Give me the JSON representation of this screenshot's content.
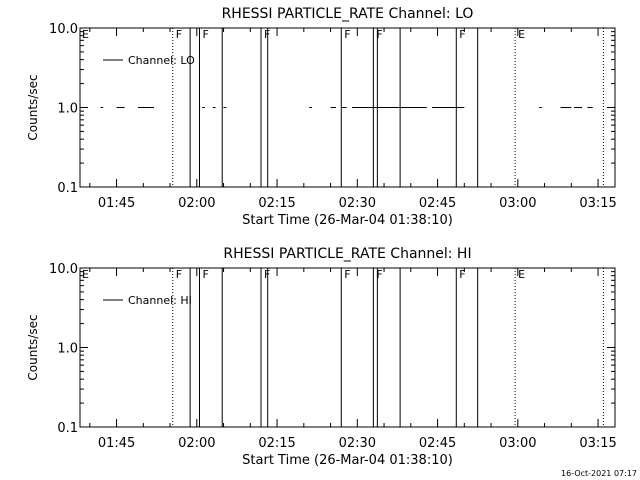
{
  "footer": {
    "timestamp": "16-Oct-2021 07:17"
  },
  "chart_data": [
    {
      "type": "line",
      "title": "RHESSI PARTICLE_RATE Channel: LO",
      "xlabel": "Start Time (26-Mar-04 01:38:10)",
      "ylabel": "Counts/sec",
      "yscale": "log",
      "ylim": [
        0.1,
        10.0
      ],
      "yticks": [
        "10.0",
        "1.0",
        "0.1"
      ],
      "xlim": [
        "01:38:10",
        "03:18:10"
      ],
      "xticks": [
        "01:45",
        "02:00",
        "02:15",
        "02:30",
        "02:45",
        "03:00",
        "03:15"
      ],
      "legend": {
        "position": "top-left",
        "entries": [
          "Channel: LO"
        ]
      },
      "series": [
        {
          "name": "Channel: LO",
          "style": "solid",
          "y": 1.0,
          "segments": [
            [
              "01:42",
              "01:42:30"
            ],
            [
              "01:45",
              "01:46:30"
            ],
            [
              "01:49",
              "01:52"
            ],
            [
              "02:01",
              "02:01:30"
            ],
            [
              "02:03",
              "02:03:30"
            ],
            [
              "02:05",
              "02:05:30"
            ],
            [
              "02:21",
              "02:21:30"
            ],
            [
              "02:25",
              "02:26"
            ],
            [
              "02:27",
              "02:28"
            ],
            [
              "02:29",
              "02:43"
            ],
            [
              "02:44",
              "02:50"
            ],
            [
              "03:04",
              "03:04:30"
            ],
            [
              "03:08",
              "03:10"
            ],
            [
              "03:10:30",
              "03:12"
            ],
            [
              "03:13",
              "03:14"
            ]
          ]
        }
      ],
      "vertical_markers": [
        {
          "time": "01:55:30",
          "label": "F",
          "style": "dotted"
        },
        {
          "time": "01:58:45",
          "label": "",
          "style": "solid"
        },
        {
          "time": "02:00:30",
          "label": "F",
          "style": "solid"
        },
        {
          "time": "02:04:45",
          "label": "",
          "style": "solid"
        },
        {
          "time": "02:12:00",
          "label": "F",
          "style": "solid"
        },
        {
          "time": "02:13:15",
          "label": "",
          "style": "solid"
        },
        {
          "time": "02:27:00",
          "label": "F",
          "style": "solid"
        },
        {
          "time": "02:33:00",
          "label": "F",
          "style": "solid"
        },
        {
          "time": "02:33:45",
          "label": "",
          "style": "solid"
        },
        {
          "time": "02:38:00",
          "label": "",
          "style": "solid"
        },
        {
          "time": "02:48:30",
          "label": "F",
          "style": "solid"
        },
        {
          "time": "02:52:30",
          "label": "",
          "style": "solid"
        },
        {
          "time": "02:59:30",
          "label": "E",
          "style": "dotted"
        },
        {
          "time": "03:16:00",
          "label": "",
          "style": "dotted"
        }
      ],
      "edge_labels": [
        {
          "time": "01:38:10",
          "label": "E"
        }
      ]
    },
    {
      "type": "line",
      "title": "RHESSI PARTICLE_RATE Channel: HI",
      "xlabel": "Start Time (26-Mar-04 01:38:10)",
      "ylabel": "Counts/sec",
      "yscale": "log",
      "ylim": [
        0.1,
        10.0
      ],
      "yticks": [
        "10.0",
        "1.0",
        "0.1"
      ],
      "xlim": [
        "01:38:10",
        "03:18:10"
      ],
      "xticks": [
        "01:45",
        "02:00",
        "02:15",
        "02:30",
        "02:45",
        "03:00",
        "03:15"
      ],
      "legend": {
        "position": "top-left",
        "entries": [
          "Channel: HI"
        ]
      },
      "series": [
        {
          "name": "Channel: HI",
          "style": "solid",
          "y": null,
          "segments": []
        }
      ],
      "vertical_markers": [
        {
          "time": "01:55:30",
          "label": "F",
          "style": "dotted"
        },
        {
          "time": "01:58:45",
          "label": "",
          "style": "solid"
        },
        {
          "time": "02:00:30",
          "label": "F",
          "style": "solid"
        },
        {
          "time": "02:04:45",
          "label": "",
          "style": "solid"
        },
        {
          "time": "02:12:00",
          "label": "F",
          "style": "solid"
        },
        {
          "time": "02:13:15",
          "label": "",
          "style": "solid"
        },
        {
          "time": "02:27:00",
          "label": "F",
          "style": "solid"
        },
        {
          "time": "02:33:00",
          "label": "F",
          "style": "solid"
        },
        {
          "time": "02:33:45",
          "label": "",
          "style": "solid"
        },
        {
          "time": "02:38:00",
          "label": "",
          "style": "solid"
        },
        {
          "time": "02:48:30",
          "label": "F",
          "style": "solid"
        },
        {
          "time": "02:52:30",
          "label": "",
          "style": "solid"
        },
        {
          "time": "02:59:30",
          "label": "E",
          "style": "dotted"
        },
        {
          "time": "03:16:00",
          "label": "",
          "style": "dotted"
        }
      ],
      "edge_labels": [
        {
          "time": "01:38:10",
          "label": "E"
        }
      ]
    }
  ]
}
